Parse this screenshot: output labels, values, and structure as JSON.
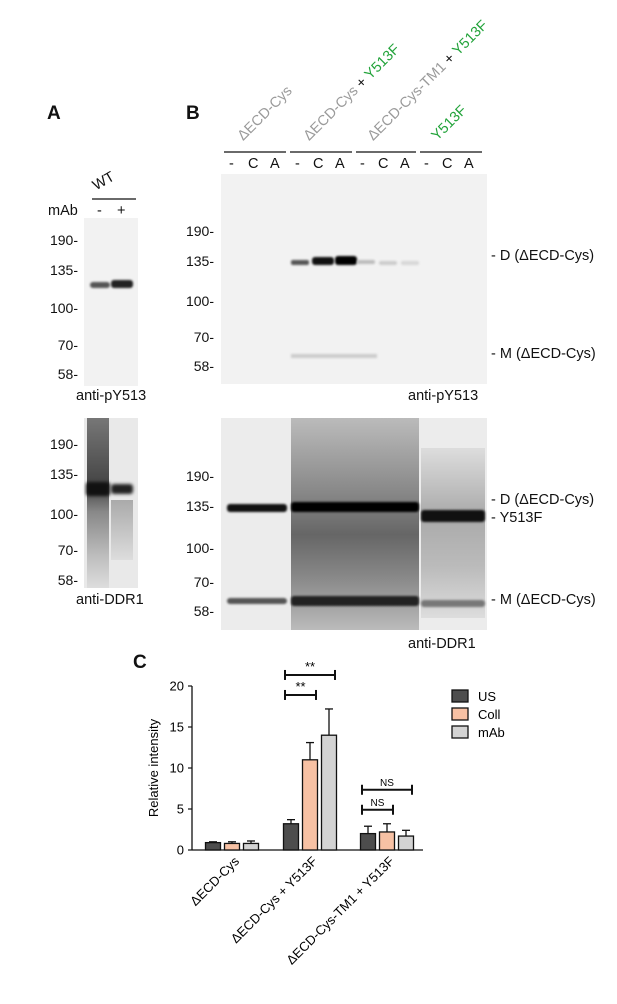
{
  "panel_a": {
    "letter": "A",
    "genotype": "WT",
    "treatment_label": "mAb",
    "lane_signs": [
      "-",
      "+"
    ],
    "top_blot": {
      "markers": [
        "190-",
        "135-",
        "100-",
        "70-",
        "58-"
      ],
      "antibody": "anti-pY513"
    },
    "bottom_blot": {
      "markers": [
        "190-",
        "135-",
        "100-",
        "70-",
        "58-"
      ],
      "antibody": "anti-DDR1"
    }
  },
  "panel_b": {
    "letter": "B",
    "groups": [
      {
        "parts": [
          {
            "text": "ΔECD-Cys",
            "color": "#9a9a9a"
          }
        ],
        "lanes": [
          "-",
          "C",
          "A"
        ]
      },
      {
        "parts": [
          {
            "text": "ΔECD-Cys",
            "color": "#9a9a9a"
          },
          {
            "text": " + ",
            "color": "#111111"
          },
          {
            "text": "Y513F",
            "color": "#22a33a"
          }
        ],
        "lanes": [
          "-",
          "C",
          "A"
        ]
      },
      {
        "parts": [
          {
            "text": "ΔECD-Cys-TM1",
            "color": "#9a9a9a"
          },
          {
            "text": " + ",
            "color": "#111111"
          },
          {
            "text": "Y513F",
            "color": "#22a33a"
          }
        ],
        "lanes": [
          "-",
          "C",
          "A"
        ]
      },
      {
        "parts": [
          {
            "text": "Y513F",
            "color": "#22a33a"
          }
        ],
        "lanes": [
          "-",
          "C",
          "A"
        ]
      }
    ],
    "top_blot": {
      "markers": [
        "190-",
        "135-",
        "100-",
        "70-",
        "58-"
      ],
      "antibody": "anti-pY513",
      "band_labels": [
        "- D (ΔECD-Cys)",
        "- M (ΔECD-Cys)"
      ]
    },
    "bottom_blot": {
      "markers": [
        "190-",
        "135-",
        "100-",
        "70-",
        "58-"
      ],
      "antibody": "anti-DDR1",
      "band_labels": [
        "- D (ΔECD-Cys)",
        "- Y513F",
        "- M (ΔECD-Cys)"
      ]
    }
  },
  "panel_c": {
    "letter": "C",
    "chart_data": {
      "type": "bar",
      "ylabel": "Relative intensity",
      "ylim": [
        0,
        20
      ],
      "yticks": [
        0,
        5,
        10,
        15,
        20
      ],
      "categories": [
        "ΔECD-Cys",
        "ΔECD-Cys + Y513F",
        "ΔECD-Cys-TM1 + Y513F"
      ],
      "series": [
        {
          "name": "US",
          "color": "#4d4d4d",
          "values": [
            0.9,
            3.2,
            2.0
          ],
          "errors": [
            0.1,
            0.5,
            0.9
          ]
        },
        {
          "name": "Coll",
          "color": "#f7c1a4",
          "values": [
            0.8,
            11.0,
            2.2
          ],
          "errors": [
            0.2,
            2.1,
            1.0
          ]
        },
        {
          "name": "mAb",
          "color": "#d3d3d3",
          "values": [
            0.8,
            14.0,
            1.7
          ],
          "errors": [
            0.3,
            3.2,
            0.7
          ]
        }
      ],
      "significance": [
        {
          "label": "**",
          "category": 1,
          "from": "US",
          "to": "Coll"
        },
        {
          "label": "**",
          "category": 1,
          "from": "US",
          "to": "mAb"
        },
        {
          "label": "NS",
          "category": 2,
          "from": "US",
          "to": "Coll"
        },
        {
          "label": "NS",
          "category": 2,
          "from": "US",
          "to": "mAb"
        }
      ],
      "legend_placement": "right"
    }
  }
}
